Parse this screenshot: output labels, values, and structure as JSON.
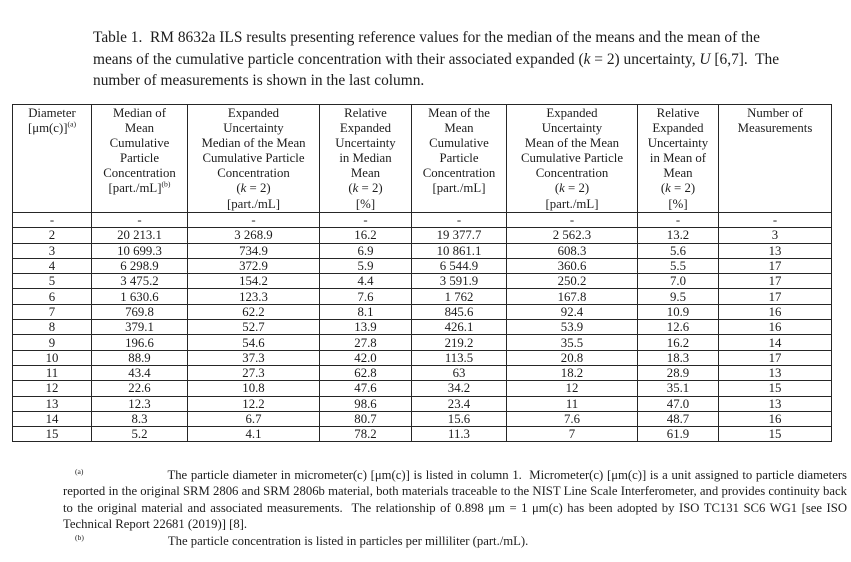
{
  "page": {
    "background": "#ffffff",
    "text_color": "#1c1c1c",
    "border_color": "#262626"
  },
  "title": {
    "segs": [
      {
        "t": "Table 1.  RM 8632a ILS results presenting reference values for the median of the means and the mean of the means of the cumulative particle concentration with their associated expanded ("
      },
      {
        "t": "k",
        "i": true
      },
      {
        "t": " = 2) uncertainty, "
      },
      {
        "t": "U",
        "i": true
      },
      {
        "t": " [6,7].  The number of measurements is shown in the last column."
      }
    ]
  },
  "table": {
    "column_headers": [
      {
        "name": "diameter",
        "lines": [
          [
            {
              "t": "Diameter"
            }
          ],
          [
            {
              "t": "[μm(c)]"
            },
            {
              "t": "(a)",
              "sup": true
            }
          ]
        ]
      },
      {
        "name": "median-of-mean-concentration",
        "lines": [
          [
            {
              "t": "Median of"
            }
          ],
          [
            {
              "t": "Mean"
            }
          ],
          [
            {
              "t": "Cumulative"
            }
          ],
          [
            {
              "t": "Particle"
            }
          ],
          [
            {
              "t": "Concentration"
            }
          ],
          [
            {
              "t": "[part./mL]"
            },
            {
              "t": "(b)",
              "sup": true
            }
          ]
        ]
      },
      {
        "name": "expanded-uncertainty-median",
        "lines": [
          [
            {
              "t": "Expanded"
            }
          ],
          [
            {
              "t": "Uncertainty"
            }
          ],
          [
            {
              "t": "Median of the Mean"
            }
          ],
          [
            {
              "t": "Cumulative Particle"
            }
          ],
          [
            {
              "t": "Concentration"
            }
          ],
          [
            {
              "t": "("
            },
            {
              "t": "k",
              "i": true
            },
            {
              "t": " = 2)"
            }
          ],
          [
            {
              "t": "[part./mL]"
            }
          ]
        ]
      },
      {
        "name": "relative-expanded-uncertainty-median",
        "lines": [
          [
            {
              "t": "Relative"
            }
          ],
          [
            {
              "t": "Expanded"
            }
          ],
          [
            {
              "t": "Uncertainty"
            }
          ],
          [
            {
              "t": "in Median"
            }
          ],
          [
            {
              "t": "Mean"
            }
          ],
          [
            {
              "t": "("
            },
            {
              "t": "k",
              "i": true
            },
            {
              "t": " = 2)"
            }
          ],
          [
            {
              "t": "[%]"
            }
          ]
        ]
      },
      {
        "name": "mean-of-mean-concentration",
        "lines": [
          [
            {
              "t": "Mean of the"
            }
          ],
          [
            {
              "t": "Mean"
            }
          ],
          [
            {
              "t": "Cumulative"
            }
          ],
          [
            {
              "t": "Particle"
            }
          ],
          [
            {
              "t": "Concentration"
            }
          ],
          [
            {
              "t": "[part./mL]"
            }
          ]
        ]
      },
      {
        "name": "expanded-uncertainty-mean",
        "lines": [
          [
            {
              "t": "Expanded"
            }
          ],
          [
            {
              "t": "Uncertainty"
            }
          ],
          [
            {
              "t": "Mean of the Mean"
            }
          ],
          [
            {
              "t": "Cumulative Particle"
            }
          ],
          [
            {
              "t": "Concentration"
            }
          ],
          [
            {
              "t": "("
            },
            {
              "t": "k",
              "i": true
            },
            {
              "t": " = 2)"
            }
          ],
          [
            {
              "t": "[part./mL]"
            }
          ]
        ]
      },
      {
        "name": "relative-expanded-uncertainty-mean",
        "lines": [
          [
            {
              "t": "Relative"
            }
          ],
          [
            {
              "t": "Expanded"
            }
          ],
          [
            {
              "t": "Uncertainty"
            }
          ],
          [
            {
              "t": "in Mean of"
            }
          ],
          [
            {
              "t": "Mean"
            }
          ],
          [
            {
              "t": "("
            },
            {
              "t": "k",
              "i": true
            },
            {
              "t": " = 2)"
            }
          ],
          [
            {
              "t": "[%]"
            }
          ]
        ]
      },
      {
        "name": "number-of-measurements",
        "lines": [
          [
            {
              "t": "Number of"
            }
          ],
          [
            {
              "t": "Measurements"
            }
          ]
        ]
      }
    ],
    "rows": [
      [
        "-",
        "-",
        "-",
        "-",
        "-",
        "-",
        "-",
        "-"
      ],
      [
        "2",
        "20 213.1",
        "3 268.9",
        "16.2",
        "19 377.7",
        "2 562.3",
        "13.2",
        "3"
      ],
      [
        "3",
        "10 699.3",
        "734.9",
        "6.9",
        "10 861.1",
        "608.3",
        "5.6",
        "13"
      ],
      [
        "4",
        "6 298.9",
        "372.9",
        "5.9",
        "6 544.9",
        "360.6",
        "5.5",
        "17"
      ],
      [
        "5",
        "3 475.2",
        "154.2",
        "4.4",
        "3 591.9",
        "250.2",
        "7.0",
        "17"
      ],
      [
        "6",
        "1 630.6",
        "123.3",
        "7.6",
        "1 762",
        "167.8",
        "9.5",
        "17"
      ],
      [
        "7",
        "769.8",
        "62.2",
        "8.1",
        "845.6",
        "92.4",
        "10.9",
        "16"
      ],
      [
        "8",
        "379.1",
        "52.7",
        "13.9",
        "426.1",
        "53.9",
        "12.6",
        "16"
      ],
      [
        "9",
        "196.6",
        "54.6",
        "27.8",
        "219.2",
        "35.5",
        "16.2",
        "14"
      ],
      [
        "10",
        "88.9",
        "37.3",
        "42.0",
        "113.5",
        "20.8",
        "18.3",
        "17"
      ],
      [
        "11",
        "43.4",
        "27.3",
        "62.8",
        "63",
        "18.2",
        "28.9",
        "13"
      ],
      [
        "12",
        "22.6",
        "10.8",
        "47.6",
        "34.2",
        "12",
        "35.1",
        "15"
      ],
      [
        "13",
        "12.3",
        "12.2",
        "98.6",
        "23.4",
        "11",
        "47.0",
        "13"
      ],
      [
        "14",
        "8.3",
        "6.7",
        "80.7",
        "15.6",
        "7.6",
        "48.7",
        "16"
      ],
      [
        "15",
        "5.2",
        "4.1",
        "78.2",
        "11.3",
        "7",
        "61.9",
        "15"
      ]
    ]
  },
  "footnotes": {
    "a": {
      "marker": "(a)",
      "segs": [
        {
          "tab": "sm"
        },
        {
          "t": "(a)",
          "sup": true
        },
        {
          "tab": "lg"
        },
        {
          "t": "The particle diameter in micrometer(c) [μm(c)] is listed in column 1.  Micrometer(c) [μm(c)] is a unit assigned to particle diameters reported in the original SRM 2806 and SRM 2806b material, both materials traceable to the NIST Line Scale Interferometer, and provides continuity back to the original material and associated measurements.  The relationship of 0.898 μm = 1 μm(c) has been adopted by ISO TC131 SC6 WG1 [see ISO Technical Report 22681 (2019)] [8]."
        }
      ]
    },
    "b": {
      "marker": "(b)",
      "segs": [
        {
          "tab": "sm"
        },
        {
          "t": "(b)",
          "sup": true
        },
        {
          "tab": "lg"
        },
        {
          "t": "The particle concentration is listed in particles per milliliter (part./mL)."
        }
      ]
    }
  }
}
